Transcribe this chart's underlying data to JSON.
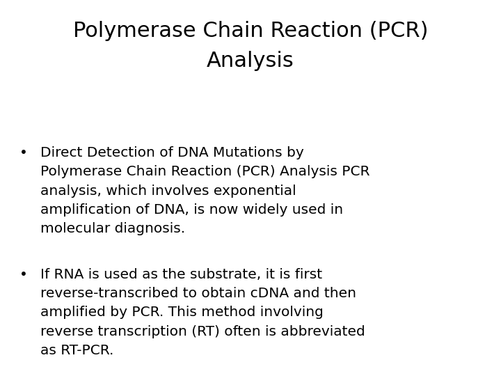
{
  "title_line1": "Polymerase Chain Reaction (PCR)",
  "title_line2": "Analysis",
  "title_fontsize": 22,
  "title_color": "#000000",
  "background_color": "#ffffff",
  "bullet_color": "#000000",
  "bullet_fontsize": 14.5,
  "bullet1": "Direct Detection of DNA Mutations by\nPolymerase Chain Reaction (PCR) Analysis PCR\nanalysis, which involves exponential\namplification of DNA, is now widely used in\nmolecular diagnosis.",
  "bullet2": "If RNA is used as the substrate, it is first\nreverse-transcribed to obtain cDNA and then\namplified by PCR. This method involving\nreverse transcription (RT) often is abbreviated\nas RT-PCR.",
  "font_family": "DejaVu Sans"
}
